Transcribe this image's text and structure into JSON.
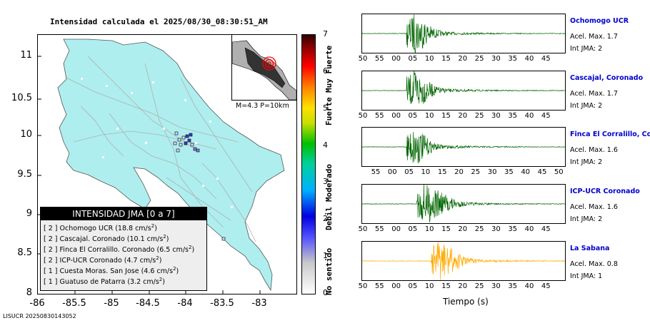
{
  "map": {
    "title": "Intensidad calculada el 2025/08/30_08:30:51_AM",
    "y_ticks": [
      "11",
      "10.5",
      "10",
      "9.5",
      "9",
      "8.5",
      "8"
    ],
    "x_ticks": [
      "-86",
      "-85.5",
      "-85",
      "-84.5",
      "-84",
      "-83.5",
      "-83"
    ],
    "land_color": "#aeeeee",
    "inset_label": "M=4.3 P=10km"
  },
  "legend": {
    "header": "INTENSIDAD JMA [0 a 7]",
    "rows": [
      {
        "jma": "[ 2 ]",
        "text": "Ochomogo UCR (18.8 cm/s",
        "sup": "2",
        "end": ")"
      },
      {
        "jma": "[ 2 ]",
        "text": "Cascajal. Coronado (10.1 cm/s",
        "sup": "2",
        "end": ")"
      },
      {
        "jma": "[ 2 ]",
        "text": "Finca El Corralillo. Coronado (6.5 cm/s",
        "sup": "2",
        "end": ")"
      },
      {
        "jma": "[ 2 ]",
        "text": "ICP-UCR Coronado (4.7 cm/s",
        "sup": "2",
        "end": ")"
      },
      {
        "jma": "[ 1 ]",
        "text": "Cuesta Moras. San Jose (4.6 cm/s",
        "sup": "2",
        "end": ")"
      },
      {
        "jma": "[ 1 ]",
        "text": "Guatuso de Patarra (3.2 cm/s",
        "sup": "2",
        "end": ")"
      }
    ]
  },
  "colorbar": {
    "numbers": [
      "7",
      "6",
      "5",
      "4",
      "3",
      "2",
      "1",
      "0"
    ],
    "words": [
      "Muy Fuerte",
      "Fuerte",
      "Moderado",
      "Debil",
      "No sentido"
    ]
  },
  "waveforms": {
    "time_label": "Tiempo (s)",
    "stations": [
      {
        "name": "Ochomogo UCR",
        "acel": "Acel. Max. 1.7",
        "jma": "Int JMA: 2",
        "color": "#006600",
        "ticks": [
          "50",
          "55",
          "00",
          "05",
          "10",
          "15",
          "20",
          "25",
          "30",
          "35",
          "40",
          "45"
        ]
      },
      {
        "name": "Cascajal, Coronado",
        "acel": "Acel. Max. 1.7",
        "jma": "Int JMA: 2",
        "color": "#006600",
        "ticks": [
          "50",
          "55",
          "00",
          "05",
          "10",
          "15",
          "20",
          "25",
          "30",
          "35",
          "40",
          "45"
        ]
      },
      {
        "name": "Finca El Corralillo, Coro",
        "acel": "Acel. Max. 1.6",
        "jma": "Int JMA: 2",
        "color": "#006600",
        "ticks": [
          "55",
          "00",
          "05",
          "10",
          "15",
          "20",
          "25",
          "30",
          "35",
          "40",
          "45",
          "50"
        ]
      },
      {
        "name": "ICP-UCR Coronado",
        "acel": "Acel. Max. 1.6",
        "jma": "Int JMA: 2",
        "color": "#006600",
        "ticks": [
          "50",
          "55",
          "00",
          "05",
          "10",
          "15",
          "20",
          "25",
          "30",
          "35",
          "40",
          "45"
        ]
      },
      {
        "name": "La Sabana",
        "acel": "Acel. Max. 0.8",
        "jma": "Int JMA: 1",
        "color": "#ffaa00",
        "ticks": [
          "50",
          "55",
          "00",
          "05",
          "10",
          "15",
          "20",
          "25",
          "30",
          "35",
          "40",
          "45"
        ]
      }
    ]
  },
  "footer": "LISUCR 20250830143052"
}
